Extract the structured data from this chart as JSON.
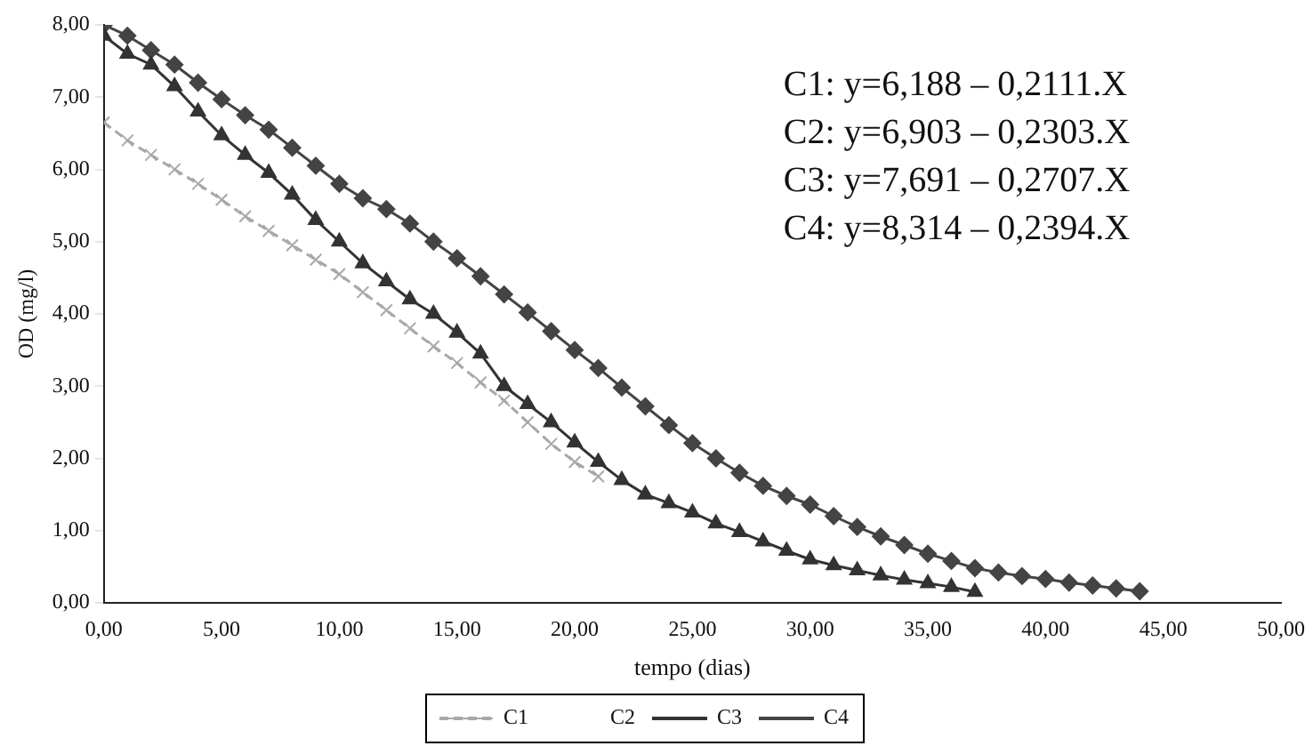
{
  "chart_data": {
    "type": "line",
    "xlabel": "tempo (dias)",
    "ylabel": "OD (mg/l)",
    "xlim": [
      0,
      50
    ],
    "ylim": [
      0,
      8
    ],
    "xticks": [
      {
        "value": 0,
        "label": "0,00"
      },
      {
        "value": 5,
        "label": "5,00"
      },
      {
        "value": 10,
        "label": "10,00"
      },
      {
        "value": 15,
        "label": "15,00"
      },
      {
        "value": 20,
        "label": "20,00"
      },
      {
        "value": 25,
        "label": "25,00"
      },
      {
        "value": 30,
        "label": "30,00"
      },
      {
        "value": 35,
        "label": "35,00"
      },
      {
        "value": 40,
        "label": "40,00"
      },
      {
        "value": 45,
        "label": "45,00"
      },
      {
        "value": 50,
        "label": "50,00"
      }
    ],
    "yticks": [
      {
        "value": 0,
        "label": "0,00"
      },
      {
        "value": 1,
        "label": "1,00"
      },
      {
        "value": 2,
        "label": "2,00"
      },
      {
        "value": 3,
        "label": "3,00"
      },
      {
        "value": 4,
        "label": "4,00"
      },
      {
        "value": 5,
        "label": "5,00"
      },
      {
        "value": 6,
        "label": "6,00"
      },
      {
        "value": 7,
        "label": "7,00"
      },
      {
        "value": 8,
        "label": "8,00"
      }
    ],
    "grid": false,
    "legend": "bottom",
    "annotations": [
      "C1: y=6,188 – 0,2111.X",
      "C2: y=6,903 – 0,2303.X",
      "C3: y=7,691 – 0,2707.X",
      "C4: y=8,314 – 0,2394.X"
    ],
    "series": [
      {
        "name": "C1",
        "color": "#a8a8a8",
        "marker": "cross",
        "line_style": "dashed",
        "x": [
          0,
          1,
          2,
          3,
          4,
          5,
          6,
          7,
          8,
          9,
          10,
          11,
          12,
          13,
          14,
          15,
          16,
          17,
          18,
          19,
          20,
          21
        ],
        "values": [
          6.65,
          6.4,
          6.2,
          6.0,
          5.8,
          5.58,
          5.35,
          5.15,
          4.95,
          4.75,
          4.55,
          4.3,
          4.05,
          3.8,
          3.55,
          3.32,
          3.05,
          2.8,
          2.5,
          2.2,
          1.95,
          1.75
        ]
      },
      {
        "name": "C2",
        "marker": "none"
      },
      {
        "name": "C3",
        "color": "#333333",
        "marker": "triangle",
        "line_style": "solid",
        "x": [
          0,
          1,
          2,
          3,
          4,
          5,
          6,
          7,
          8,
          9,
          10,
          11,
          12,
          13,
          14,
          15,
          16,
          17,
          18,
          19,
          20,
          21,
          22,
          23,
          24,
          25,
          26,
          27,
          28,
          29,
          30,
          31,
          32,
          33,
          34,
          35,
          36,
          37
        ],
        "values": [
          7.85,
          7.6,
          7.45,
          7.15,
          6.8,
          6.47,
          6.2,
          5.95,
          5.65,
          5.3,
          5.0,
          4.7,
          4.45,
          4.2,
          4.0,
          3.74,
          3.45,
          3.0,
          2.75,
          2.5,
          2.22,
          1.95,
          1.7,
          1.5,
          1.38,
          1.25,
          1.1,
          0.98,
          0.85,
          0.72,
          0.6,
          0.52,
          0.45,
          0.38,
          0.32,
          0.27,
          0.22,
          0.15
        ]
      },
      {
        "name": "C4",
        "color": "#444444",
        "marker": "diamond",
        "line_style": "solid",
        "x": [
          0,
          1,
          2,
          3,
          4,
          5,
          6,
          7,
          8,
          9,
          10,
          11,
          12,
          13,
          14,
          15,
          16,
          17,
          18,
          19,
          20,
          21,
          22,
          23,
          24,
          25,
          26,
          27,
          28,
          29,
          30,
          31,
          32,
          33,
          34,
          35,
          36,
          37,
          38,
          39,
          40,
          41,
          42,
          43,
          44
        ],
        "values": [
          8.0,
          7.85,
          7.65,
          7.45,
          7.2,
          6.97,
          6.75,
          6.55,
          6.3,
          6.05,
          5.8,
          5.6,
          5.45,
          5.25,
          5.0,
          4.77,
          4.52,
          4.27,
          4.02,
          3.76,
          3.5,
          3.25,
          2.98,
          2.72,
          2.46,
          2.21,
          2.0,
          1.8,
          1.62,
          1.48,
          1.36,
          1.2,
          1.05,
          0.92,
          0.8,
          0.68,
          0.58,
          0.48,
          0.42,
          0.37,
          0.33,
          0.28,
          0.24,
          0.2,
          0.16
        ]
      }
    ]
  }
}
